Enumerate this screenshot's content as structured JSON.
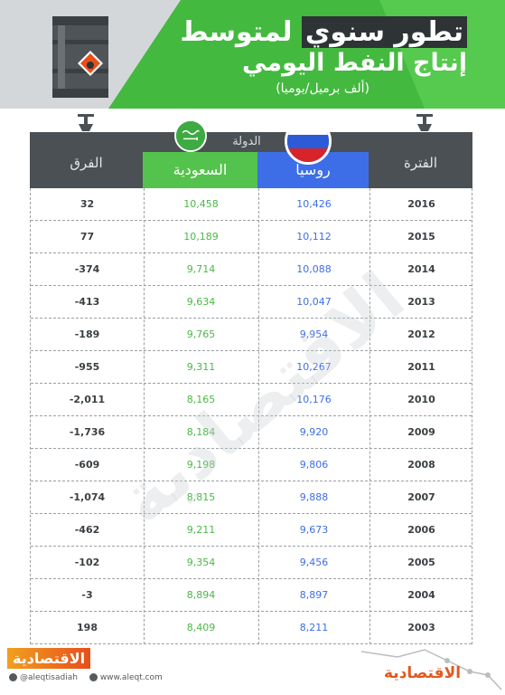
{
  "header": {
    "title_highlight": "تطور سنوي",
    "title_rest": "لمتوسط",
    "title_line2": "إنتاج النفط اليومي",
    "subtitle": "(ألف برميل/يوميا)"
  },
  "table": {
    "col_period": "الفترة",
    "col_country_group": "الدولة",
    "col_russia": "روسيا",
    "col_saudi": "السعودية",
    "col_diff": "الفرق"
  },
  "chart_data": {
    "type": "table",
    "title": "تطور سنوي لمتوسط إنتاج النفط اليومي",
    "subtitle": "(ألف برميل/يوميا)",
    "columns": [
      "الفترة",
      "روسيا",
      "السعودية",
      "الفرق"
    ],
    "rows": [
      {
        "period": "2016",
        "russia": "10,426",
        "saudi": "10,458",
        "diff": "32"
      },
      {
        "period": "2015",
        "russia": "10,112",
        "saudi": "10,189",
        "diff": "77"
      },
      {
        "period": "2014",
        "russia": "10,088",
        "saudi": "9,714",
        "diff": "-374"
      },
      {
        "period": "2013",
        "russia": "10,047",
        "saudi": "9,634",
        "diff": "-413"
      },
      {
        "period": "2012",
        "russia": "9,954",
        "saudi": "9,765",
        "diff": "-189"
      },
      {
        "period": "2011",
        "russia": "10,267",
        "saudi": "9,311",
        "diff": "-955"
      },
      {
        "period": "2010",
        "russia": "10,176",
        "saudi": "8,165",
        "diff": "-2,011"
      },
      {
        "period": "2009",
        "russia": "9,920",
        "saudi": "8,184",
        "diff": "-1,736"
      },
      {
        "period": "2008",
        "russia": "9,806",
        "saudi": "9,198",
        "diff": "-609"
      },
      {
        "period": "2007",
        "russia": "9,888",
        "saudi": "8,815",
        "diff": "-1,074"
      },
      {
        "period": "2006",
        "russia": "9,673",
        "saudi": "9,211",
        "diff": "-462"
      },
      {
        "period": "2005",
        "russia": "9,456",
        "saudi": "9,354",
        "diff": "-102"
      },
      {
        "period": "2004",
        "russia": "8,897",
        "saudi": "8,894",
        "diff": "-3"
      },
      {
        "period": "2003",
        "russia": "8,211",
        "saudi": "8,409",
        "diff": "198"
      }
    ]
  },
  "colors": {
    "green": "#44b93f",
    "russia_blue": "#3d6ee8",
    "saudi_green": "#54c34d",
    "header_dark": "#4a5054"
  },
  "watermark": "الاقتصادية",
  "footer": {
    "logo_left": "الاقتصادية",
    "twitter": "@aleqtisadiah",
    "website": "www.aleqt.com",
    "logo_right": "الاقتصادية"
  }
}
